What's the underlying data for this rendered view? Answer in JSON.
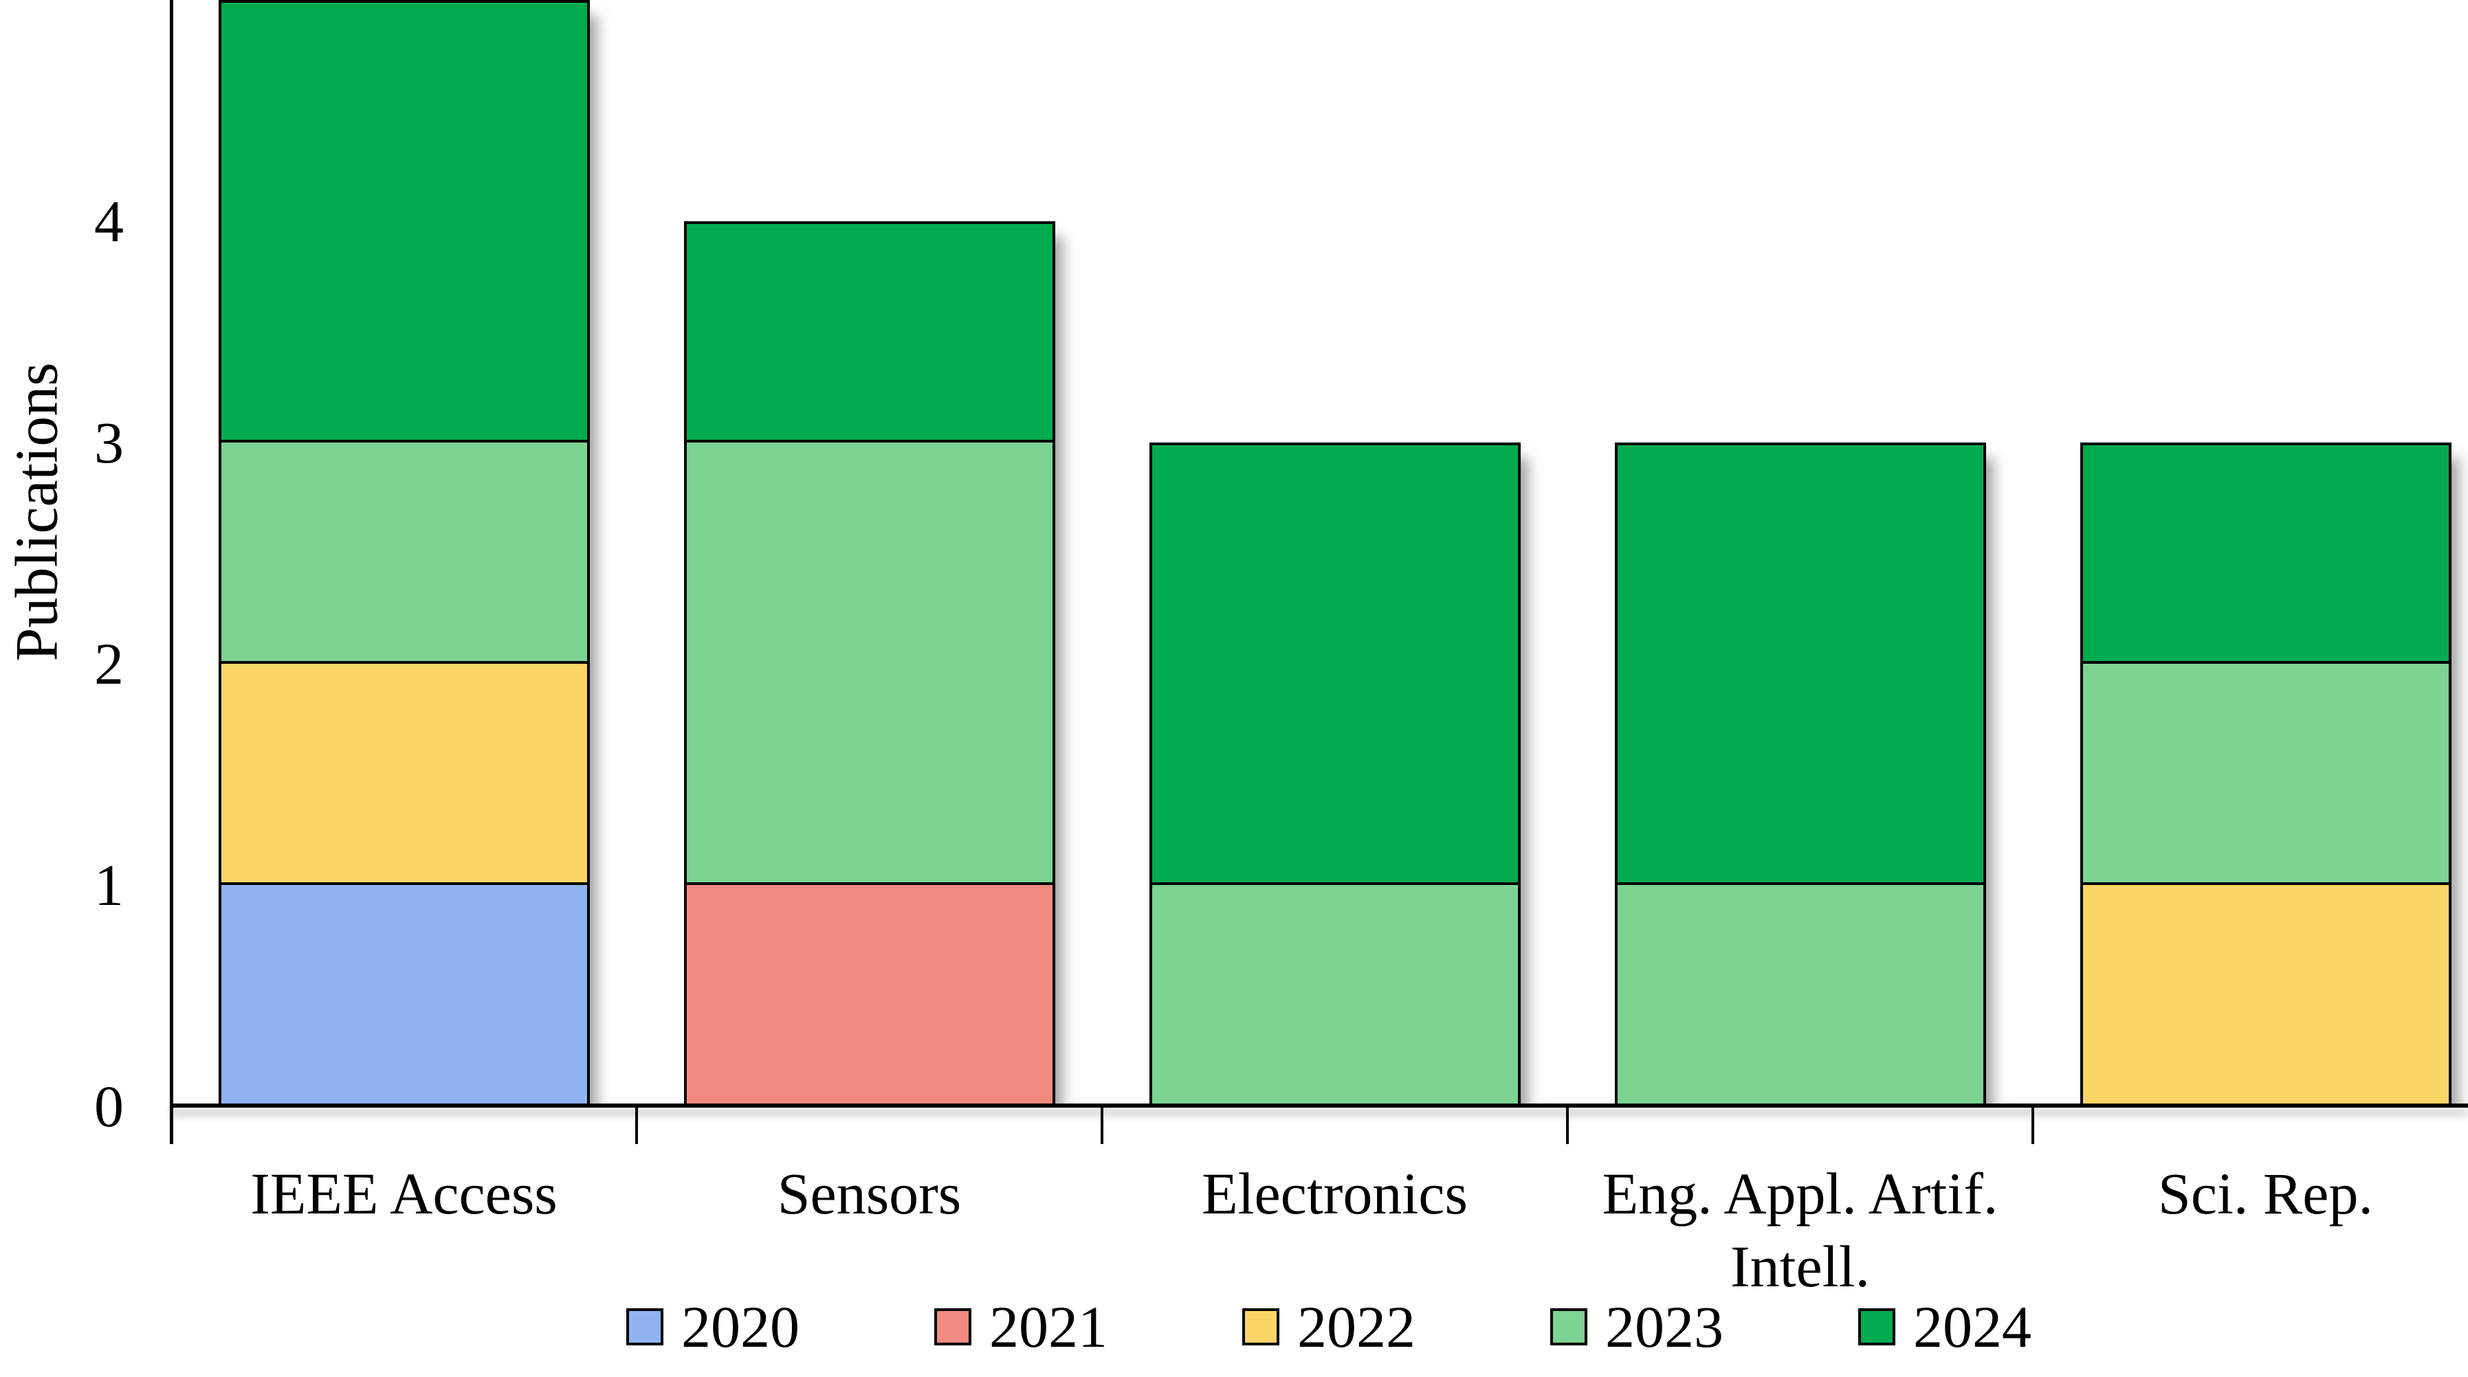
{
  "chart_data": {
    "type": "bar",
    "stacked": true,
    "title": "",
    "categories": [
      "IEEE Access",
      "Sensors",
      "Electronics",
      "Eng. Appl. Artif.\nIntell.",
      "Sci. Rep."
    ],
    "series": [
      {
        "name": "2020",
        "color": "#90B4F2",
        "values": [
          1,
          0,
          0,
          0,
          0
        ]
      },
      {
        "name": "2021",
        "color": "#F18B82",
        "values": [
          0,
          1,
          0,
          0,
          0
        ]
      },
      {
        "name": "2022",
        "color": "#FBD666",
        "values": [
          1,
          0,
          0,
          0,
          1
        ]
      },
      {
        "name": "2023",
        "color": "#7CD392",
        "values": [
          1,
          2,
          1,
          1,
          1
        ]
      },
      {
        "name": "2024",
        "color": "#03AB50",
        "values": [
          2,
          1,
          2,
          2,
          1
        ]
      }
    ],
    "totals": [
      5,
      4,
      3,
      3,
      3
    ],
    "xlabel": "",
    "ylabel": "Publications",
    "yticks": [
      0,
      1,
      2,
      3,
      4
    ],
    "ylim": [
      0,
      5
    ],
    "top_of_first_bar_clipped": true,
    "grid": false,
    "legend_position": "bottom",
    "legend_entries": [
      "2020",
      "2021",
      "2022",
      "2023",
      "2024"
    ],
    "axis_color": "#000000",
    "bar_border_color": "#000000",
    "background_color": "#FFFFFF"
  }
}
